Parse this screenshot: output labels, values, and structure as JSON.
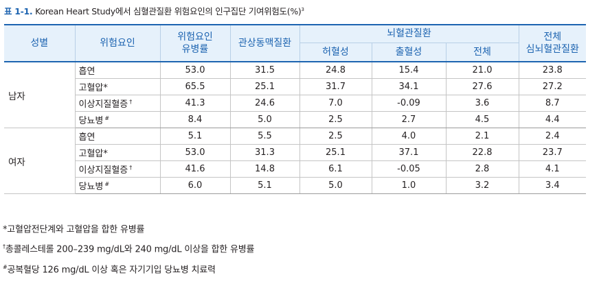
{
  "title": {
    "label": "표 1-1.",
    "text": "Korean Heart Study에서 심혈관질환 위험요인의 인구집단 기여위험도(%)",
    "ref": "3"
  },
  "table": {
    "headers": {
      "sex": "성별",
      "factor": "위험요인",
      "prevalence": [
        "위험요인",
        "유병률"
      ],
      "coronary": "관상동맥질환",
      "stroke_group": "뇌혈관질환",
      "ischemic": "허혈성",
      "hemorrhagic": "출혈성",
      "stroke_total": "전체",
      "cvd_total": [
        "전체",
        "심뇌혈관질환"
      ]
    },
    "groups": [
      {
        "sex": "남자",
        "rows": [
          {
            "factor": "흡연",
            "mark": "",
            "values": [
              "53.0",
              "31.5",
              "24.8",
              "15.4",
              "21.0",
              "23.8"
            ]
          },
          {
            "factor": "고혈압*",
            "mark": "",
            "values": [
              "65.5",
              "25.1",
              "31.7",
              "34.1",
              "27.6",
              "27.2"
            ]
          },
          {
            "factor": "이상지질혈증",
            "mark": "†",
            "values": [
              "41.3",
              "24.6",
              "7.0",
              "-0.09",
              "3.6",
              "8.7"
            ]
          },
          {
            "factor": "당뇨병",
            "mark": "#",
            "values": [
              "8.4",
              "5.0",
              "2.5",
              "2.7",
              "4.5",
              "4.4"
            ]
          }
        ]
      },
      {
        "sex": "여자",
        "rows": [
          {
            "factor": "흡연",
            "mark": "",
            "values": [
              "5.1",
              "5.5",
              "2.5",
              "4.0",
              "2.1",
              "2.4"
            ]
          },
          {
            "factor": "고혈압*",
            "mark": "",
            "values": [
              "53.0",
              "31.3",
              "25.1",
              "37.1",
              "22.8",
              "23.7"
            ]
          },
          {
            "factor": "이상지질혈증",
            "mark": "†",
            "values": [
              "41.6",
              "14.8",
              "6.1",
              "-0.05",
              "2.8",
              "4.1"
            ]
          },
          {
            "factor": "당뇨병",
            "mark": "#",
            "values": [
              "6.0",
              "5.1",
              "5.0",
              "1.0",
              "3.2",
              "3.4"
            ]
          }
        ]
      }
    ]
  },
  "notes": [
    {
      "mark": "",
      "text": "*고혈압전단계와 고혈압을 합한 유병률"
    },
    {
      "mark": "†",
      "text": "총콜레스테롤 200–239 mg/dL와 240 mg/dL 이상을 합한 유병률"
    },
    {
      "mark": "#",
      "text": "공복혈당 126 mg/dL 이상 혹은 자기기입 당뇨병 치료력"
    }
  ]
}
